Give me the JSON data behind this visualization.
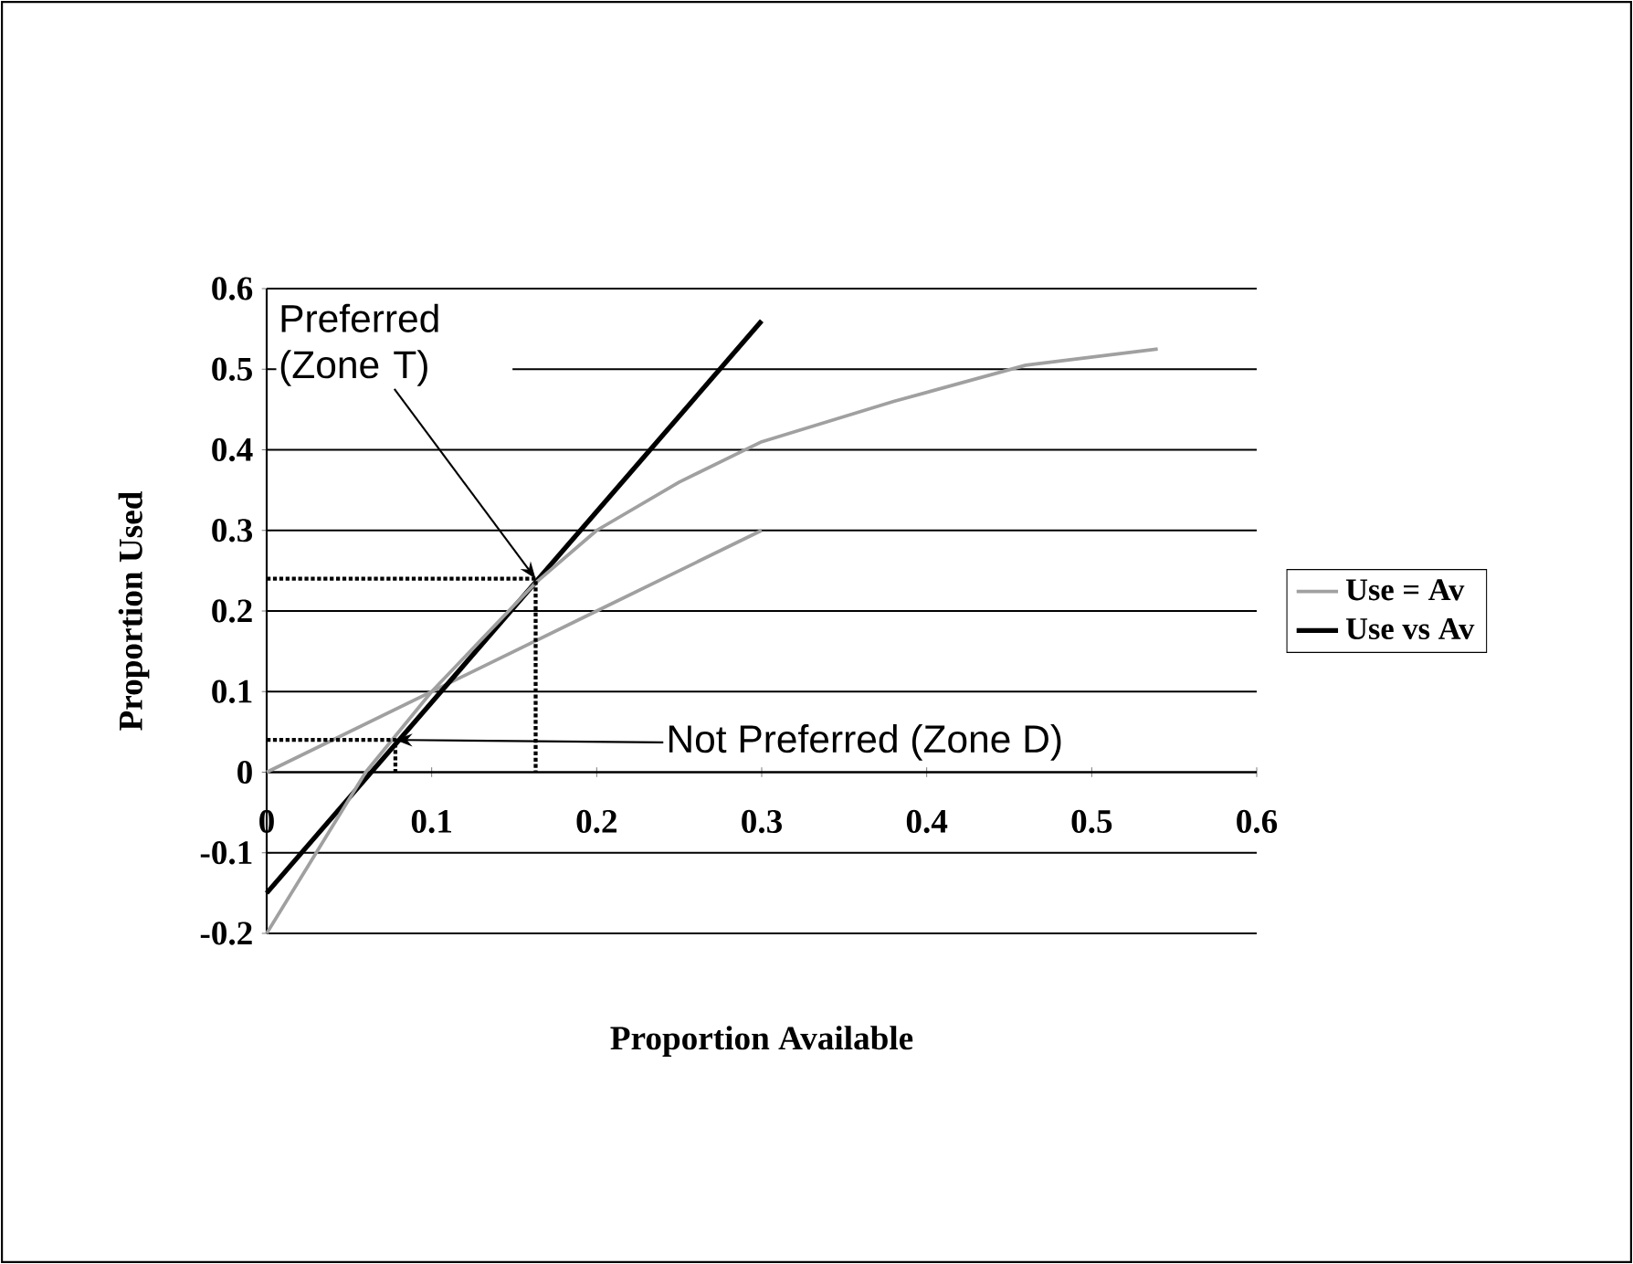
{
  "chart_data": {
    "type": "line",
    "xlabel": "Proportion Available",
    "ylabel": "Proportion Used",
    "xlim": [
      0,
      0.6
    ],
    "ylim": [
      -0.2,
      0.6
    ],
    "xticks": [
      0,
      0.1,
      0.2,
      0.3,
      0.4,
      0.5,
      0.6
    ],
    "yticks": [
      -0.2,
      -0.1,
      0,
      0.1,
      0.2,
      0.3,
      0.4,
      0.5,
      0.6
    ],
    "grid": "y",
    "legend": "right",
    "marker": "none",
    "series": [
      {
        "name": "Use = Av",
        "color": "#a0a0a0",
        "x": [
          0,
          0.1,
          0.2,
          0.3
        ],
        "values": [
          0,
          0.1,
          0.2,
          0.3
        ],
        "line_style": "solid"
      },
      {
        "name": "Use vs Av",
        "color": "#000000",
        "x": [
          0,
          0.3
        ],
        "values": [
          -0.15,
          0.56
        ],
        "line_style": "solid"
      },
      {
        "color": "#a0a0a0",
        "x": [
          0,
          0.03,
          0.06,
          0.1,
          0.163,
          0.2,
          0.25,
          0.3,
          0.38,
          0.46,
          0.54
        ],
        "values": [
          -0.2,
          -0.1,
          0,
          0.1,
          0.235,
          0.3,
          0.36,
          0.41,
          0.46,
          0.505,
          0.525
        ],
        "line_style": "solid"
      },
      {
        "color": "#000000",
        "x": [
          0,
          0.163,
          0.163
        ],
        "values": [
          0.24,
          0.24,
          0
        ],
        "line_style": "dotted"
      },
      {
        "color": "#000000",
        "x": [
          0,
          0.078,
          0.078
        ],
        "values": [
          0.04,
          0.04,
          0
        ],
        "line_style": "dotted"
      }
    ],
    "annotations": [
      {
        "text": "Preferred (Zone T)",
        "x": 0.163,
        "y": 0.24
      },
      {
        "text": "Not Preferred (Zone D)",
        "x": 0.078,
        "y": 0.04
      }
    ]
  }
}
